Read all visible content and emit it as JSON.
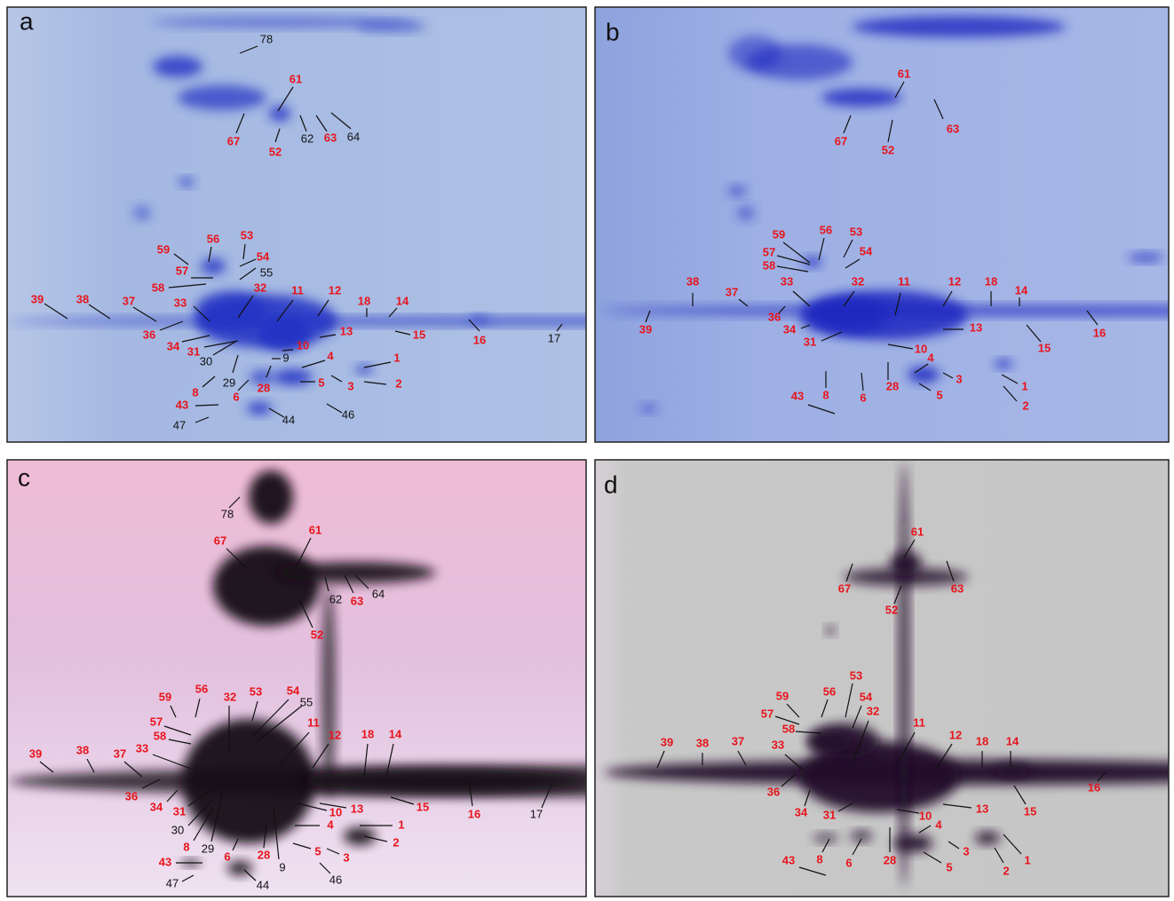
{
  "panels": [
    {
      "letter": "a",
      "labels": [
        {
          "text": "78",
          "color": "#111111"
        },
        {
          "text": "62",
          "color": "#111111"
        },
        {
          "text": "64",
          "color": "#111111"
        },
        {
          "text": "55",
          "color": "#111111"
        },
        {
          "text": "30",
          "color": "#111111"
        },
        {
          "text": "9",
          "color": "#111111"
        },
        {
          "text": "29",
          "color": "#111111"
        },
        {
          "text": "47",
          "color": "#111111"
        },
        {
          "text": "44",
          "color": "#111111"
        },
        {
          "text": "46",
          "color": "#111111"
        },
        {
          "text": "17",
          "color": "#111111"
        },
        {
          "text": "61",
          "color": "#e8141c"
        },
        {
          "text": "67",
          "color": "#e8141c"
        },
        {
          "text": "52",
          "color": "#e8141c"
        },
        {
          "text": "63",
          "color": "#e8141c"
        },
        {
          "text": "56",
          "color": "#e8141c"
        },
        {
          "text": "53",
          "color": "#e8141c"
        },
        {
          "text": "59",
          "color": "#e8141c"
        },
        {
          "text": "54",
          "color": "#e8141c"
        },
        {
          "text": "57",
          "color": "#e8141c"
        },
        {
          "text": "58",
          "color": "#e8141c"
        },
        {
          "text": "39",
          "color": "#e8141c"
        },
        {
          "text": "38",
          "color": "#e8141c"
        },
        {
          "text": "37",
          "color": "#e8141c"
        },
        {
          "text": "33",
          "color": "#e8141c"
        },
        {
          "text": "32",
          "color": "#e8141c"
        },
        {
          "text": "11",
          "color": "#e8141c"
        },
        {
          "text": "12",
          "color": "#e8141c"
        },
        {
          "text": "18",
          "color": "#e8141c"
        },
        {
          "text": "14",
          "color": "#e8141c"
        },
        {
          "text": "36",
          "color": "#e8141c"
        },
        {
          "text": "34",
          "color": "#e8141c"
        },
        {
          "text": "31",
          "color": "#e8141c"
        },
        {
          "text": "13",
          "color": "#e8141c"
        },
        {
          "text": "15",
          "color": "#e8141c"
        },
        {
          "text": "16",
          "color": "#e8141c"
        },
        {
          "text": "10",
          "color": "#e8141c"
        },
        {
          "text": "4",
          "color": "#e8141c"
        },
        {
          "text": "1",
          "color": "#e8141c"
        },
        {
          "text": "8",
          "color": "#e8141c"
        },
        {
          "text": "6",
          "color": "#e8141c"
        },
        {
          "text": "28",
          "color": "#e8141c"
        },
        {
          "text": "5",
          "color": "#e8141c"
        },
        {
          "text": "3",
          "color": "#e8141c"
        },
        {
          "text": "2",
          "color": "#e8141c"
        },
        {
          "text": "43",
          "color": "#e8141c"
        }
      ]
    },
    {
      "letter": "b",
      "labels": [
        {
          "text": "61",
          "color": "#e8141c"
        },
        {
          "text": "63",
          "color": "#e8141c"
        },
        {
          "text": "67",
          "color": "#e8141c"
        },
        {
          "text": "52",
          "color": "#e8141c"
        },
        {
          "text": "59",
          "color": "#e8141c"
        },
        {
          "text": "56",
          "color": "#e8141c"
        },
        {
          "text": "53",
          "color": "#e8141c"
        },
        {
          "text": "57",
          "color": "#e8141c"
        },
        {
          "text": "54",
          "color": "#e8141c"
        },
        {
          "text": "58",
          "color": "#e8141c"
        },
        {
          "text": "38",
          "color": "#e8141c"
        },
        {
          "text": "37",
          "color": "#e8141c"
        },
        {
          "text": "33",
          "color": "#e8141c"
        },
        {
          "text": "32",
          "color": "#e8141c"
        },
        {
          "text": "11",
          "color": "#e8141c"
        },
        {
          "text": "12",
          "color": "#e8141c"
        },
        {
          "text": "18",
          "color": "#e8141c"
        },
        {
          "text": "14",
          "color": "#e8141c"
        },
        {
          "text": "39",
          "color": "#e8141c"
        },
        {
          "text": "36",
          "color": "#e8141c"
        },
        {
          "text": "34",
          "color": "#e8141c"
        },
        {
          "text": "31",
          "color": "#e8141c"
        },
        {
          "text": "13",
          "color": "#e8141c"
        },
        {
          "text": "16",
          "color": "#e8141c"
        },
        {
          "text": "15",
          "color": "#e8141c"
        },
        {
          "text": "10",
          "color": "#e8141c"
        },
        {
          "text": "4",
          "color": "#e8141c"
        },
        {
          "text": "3",
          "color": "#e8141c"
        },
        {
          "text": "1",
          "color": "#e8141c"
        },
        {
          "text": "28",
          "color": "#e8141c"
        },
        {
          "text": "6",
          "color": "#e8141c"
        },
        {
          "text": "8",
          "color": "#e8141c"
        },
        {
          "text": "5",
          "color": "#e8141c"
        },
        {
          "text": "2",
          "color": "#e8141c"
        },
        {
          "text": "43",
          "color": "#e8141c"
        }
      ]
    },
    {
      "letter": "c",
      "labels": [
        {
          "text": "78",
          "color": "#111111"
        },
        {
          "text": "62",
          "color": "#111111"
        },
        {
          "text": "64",
          "color": "#111111"
        },
        {
          "text": "55",
          "color": "#111111"
        },
        {
          "text": "30",
          "color": "#111111"
        },
        {
          "text": "29",
          "color": "#111111"
        },
        {
          "text": "9",
          "color": "#111111"
        },
        {
          "text": "17",
          "color": "#111111"
        },
        {
          "text": "47",
          "color": "#111111"
        },
        {
          "text": "44",
          "color": "#111111"
        },
        {
          "text": "46",
          "color": "#111111"
        },
        {
          "text": "67",
          "color": "#e8141c"
        },
        {
          "text": "61",
          "color": "#e8141c"
        },
        {
          "text": "63",
          "color": "#e8141c"
        },
        {
          "text": "52",
          "color": "#e8141c"
        },
        {
          "text": "59",
          "color": "#e8141c"
        },
        {
          "text": "56",
          "color": "#e8141c"
        },
        {
          "text": "32",
          "color": "#e8141c"
        },
        {
          "text": "53",
          "color": "#e8141c"
        },
        {
          "text": "54",
          "color": "#e8141c"
        },
        {
          "text": "57",
          "color": "#e8141c"
        },
        {
          "text": "58",
          "color": "#e8141c"
        },
        {
          "text": "11",
          "color": "#e8141c"
        },
        {
          "text": "12",
          "color": "#e8141c"
        },
        {
          "text": "18",
          "color": "#e8141c"
        },
        {
          "text": "14",
          "color": "#e8141c"
        },
        {
          "text": "39",
          "color": "#e8141c"
        },
        {
          "text": "38",
          "color": "#e8141c"
        },
        {
          "text": "37",
          "color": "#e8141c"
        },
        {
          "text": "33",
          "color": "#e8141c"
        },
        {
          "text": "36",
          "color": "#e8141c"
        },
        {
          "text": "34",
          "color": "#e8141c"
        },
        {
          "text": "31",
          "color": "#e8141c"
        },
        {
          "text": "15",
          "color": "#e8141c"
        },
        {
          "text": "16",
          "color": "#e8141c"
        },
        {
          "text": "13",
          "color": "#e8141c"
        },
        {
          "text": "10",
          "color": "#e8141c"
        },
        {
          "text": "4",
          "color": "#e8141c"
        },
        {
          "text": "1",
          "color": "#e8141c"
        },
        {
          "text": "8",
          "color": "#e8141c"
        },
        {
          "text": "6",
          "color": "#e8141c"
        },
        {
          "text": "28",
          "color": "#e8141c"
        },
        {
          "text": "2",
          "color": "#e8141c"
        },
        {
          "text": "5",
          "color": "#e8141c"
        },
        {
          "text": "3",
          "color": "#e8141c"
        },
        {
          "text": "43",
          "color": "#e8141c"
        }
      ]
    },
    {
      "letter": "d",
      "labels": [
        {
          "text": "61",
          "color": "#e8141c"
        },
        {
          "text": "67",
          "color": "#e8141c"
        },
        {
          "text": "63",
          "color": "#e8141c"
        },
        {
          "text": "52",
          "color": "#e8141c"
        },
        {
          "text": "53",
          "color": "#e8141c"
        },
        {
          "text": "56",
          "color": "#e8141c"
        },
        {
          "text": "54",
          "color": "#e8141c"
        },
        {
          "text": "59",
          "color": "#e8141c"
        },
        {
          "text": "32",
          "color": "#e8141c"
        },
        {
          "text": "57",
          "color": "#e8141c"
        },
        {
          "text": "58",
          "color": "#e8141c"
        },
        {
          "text": "39",
          "color": "#e8141c"
        },
        {
          "text": "38",
          "color": "#e8141c"
        },
        {
          "text": "37",
          "color": "#e8141c"
        },
        {
          "text": "33",
          "color": "#e8141c"
        },
        {
          "text": "11",
          "color": "#e8141c"
        },
        {
          "text": "12",
          "color": "#e8141c"
        },
        {
          "text": "18",
          "color": "#e8141c"
        },
        {
          "text": "14",
          "color": "#e8141c"
        },
        {
          "text": "16",
          "color": "#e8141c"
        },
        {
          "text": "36",
          "color": "#e8141c"
        },
        {
          "text": "15",
          "color": "#e8141c"
        },
        {
          "text": "34",
          "color": "#e8141c"
        },
        {
          "text": "31",
          "color": "#e8141c"
        },
        {
          "text": "13",
          "color": "#e8141c"
        },
        {
          "text": "10",
          "color": "#e8141c"
        },
        {
          "text": "4",
          "color": "#e8141c"
        },
        {
          "text": "8",
          "color": "#e8141c"
        },
        {
          "text": "6",
          "color": "#e8141c"
        },
        {
          "text": "28",
          "color": "#e8141c"
        },
        {
          "text": "3",
          "color": "#e8141c"
        },
        {
          "text": "5",
          "color": "#e8141c"
        },
        {
          "text": "1",
          "color": "#e8141c"
        },
        {
          "text": "2",
          "color": "#e8141c"
        },
        {
          "text": "43",
          "color": "#e8141c"
        }
      ]
    }
  ]
}
